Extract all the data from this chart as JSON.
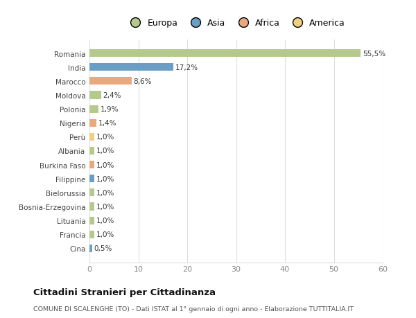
{
  "categories": [
    "Romania",
    "India",
    "Marocco",
    "Moldova",
    "Polonia",
    "Nigeria",
    "Perù",
    "Albania",
    "Burkina Faso",
    "Filippine",
    "Bielorussia",
    "Bosnia-Erzegovina",
    "Lituania",
    "Francia",
    "Cina"
  ],
  "values": [
    55.5,
    17.2,
    8.6,
    2.4,
    1.9,
    1.4,
    1.0,
    1.0,
    1.0,
    1.0,
    1.0,
    1.0,
    1.0,
    1.0,
    0.5
  ],
  "labels": [
    "55,5%",
    "17,2%",
    "8,6%",
    "2,4%",
    "1,9%",
    "1,4%",
    "1,0%",
    "1,0%",
    "1,0%",
    "1,0%",
    "1,0%",
    "1,0%",
    "1,0%",
    "1,0%",
    "0,5%"
  ],
  "colors": [
    "#b5c98e",
    "#6a9ec5",
    "#e8a97e",
    "#b5c98e",
    "#b5c98e",
    "#e8a97e",
    "#f0d080",
    "#b5c98e",
    "#e8a97e",
    "#6a9ec5",
    "#b5c98e",
    "#b5c98e",
    "#b5c98e",
    "#b5c98e",
    "#6a9ec5"
  ],
  "legend_labels": [
    "Europa",
    "Asia",
    "Africa",
    "America"
  ],
  "legend_colors": [
    "#b5c98e",
    "#6a9ec5",
    "#e8a97e",
    "#f0d080"
  ],
  "title": "Cittadini Stranieri per Cittadinanza",
  "subtitle": "COMUNE DI SCALENGHE (TO) - Dati ISTAT al 1° gennaio di ogni anno - Elaborazione TUTTITALIA.IT",
  "xlim": [
    0,
    60
  ],
  "xticks": [
    0,
    10,
    20,
    30,
    40,
    50,
    60
  ],
  "background_color": "#ffffff",
  "plot_bg_color": "#ffffff",
  "grid_color": "#dddddd",
  "bar_height": 0.55
}
